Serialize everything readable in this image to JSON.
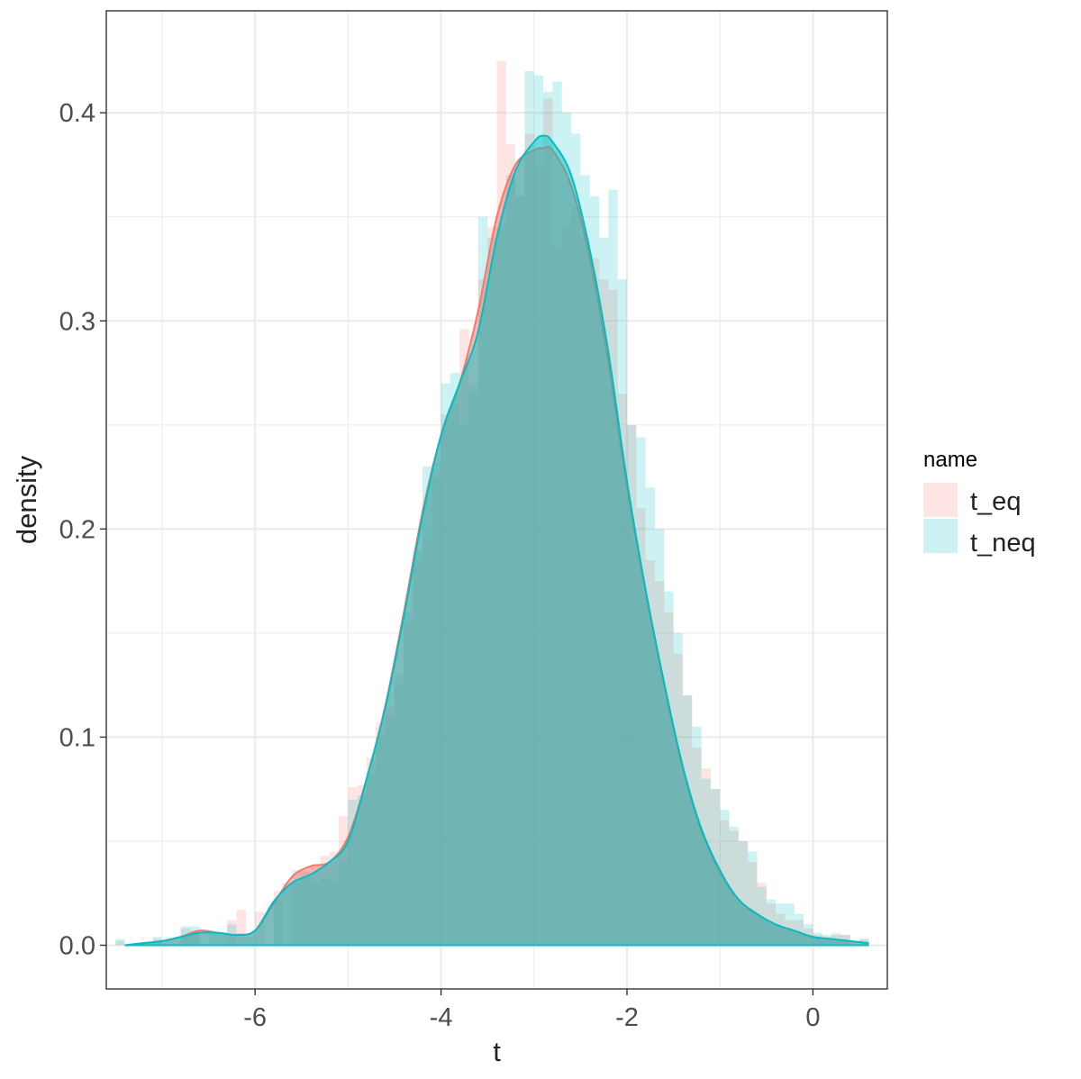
{
  "chart_data": {
    "type": "area",
    "xlabel": "t",
    "ylabel": "density",
    "xlim": [
      -7.6,
      0.8
    ],
    "ylim": [
      -0.021,
      0.449
    ],
    "x_ticks": [
      -6,
      -4,
      -2,
      0
    ],
    "x_tick_labels": [
      "-6",
      "-4",
      "-2",
      "0"
    ],
    "x_minor_ticks": [
      -7,
      -5,
      -3,
      -1
    ],
    "y_ticks": [
      0.0,
      0.1,
      0.2,
      0.3,
      0.4
    ],
    "y_tick_labels": [
      "0.0",
      "0.1",
      "0.2",
      "0.3",
      "0.4"
    ],
    "y_minor_ticks": [
      0.05,
      0.15,
      0.25,
      0.35
    ],
    "grid": true,
    "legend": {
      "title": "name",
      "placement": "right",
      "entries": [
        {
          "label": "t_eq",
          "color": "#F8766D"
        },
        {
          "label": "t_neq",
          "color": "#00BFC4"
        }
      ]
    },
    "histogram_bin_width": 0.1,
    "series": [
      {
        "name": "t_eq",
        "color": "#F8766D",
        "density_x": [
          -7.4,
          -7.2,
          -7.0,
          -6.8,
          -6.6,
          -6.4,
          -6.2,
          -6.0,
          -5.8,
          -5.6,
          -5.4,
          -5.2,
          -5.0,
          -4.8,
          -4.6,
          -4.4,
          -4.2,
          -4.0,
          -3.8,
          -3.6,
          -3.4,
          -3.2,
          -3.0,
          -2.9,
          -2.8,
          -2.6,
          -2.4,
          -2.2,
          -2.0,
          -1.8,
          -1.6,
          -1.4,
          -1.2,
          -1.0,
          -0.8,
          -0.6,
          -0.4,
          -0.2,
          0.0,
          0.2,
          0.4,
          0.6
        ],
        "density_y": [
          0.0,
          0.001,
          0.002,
          0.004,
          0.007,
          0.006,
          0.005,
          0.007,
          0.02,
          0.033,
          0.038,
          0.04,
          0.052,
          0.08,
          0.115,
          0.16,
          0.208,
          0.245,
          0.27,
          0.305,
          0.35,
          0.375,
          0.382,
          0.383,
          0.382,
          0.365,
          0.33,
          0.28,
          0.22,
          0.17,
          0.125,
          0.085,
          0.055,
          0.035,
          0.022,
          0.015,
          0.01,
          0.007,
          0.004,
          0.003,
          0.002,
          0.001
        ],
        "hist_x": [
          -7.45,
          -7.05,
          -6.75,
          -6.65,
          -6.25,
          -6.15,
          -5.95,
          -5.75,
          -5.55,
          -5.45,
          -5.35,
          -5.25,
          -5.15,
          -5.05,
          -4.95,
          -4.85,
          -4.75,
          -4.65,
          -4.55,
          -4.45,
          -4.35,
          -4.25,
          -4.15,
          -4.05,
          -3.95,
          -3.85,
          -3.75,
          -3.65,
          -3.55,
          -3.45,
          -3.35,
          -3.25,
          -3.15,
          -3.05,
          -2.95,
          -2.85,
          -2.75,
          -2.65,
          -2.55,
          -2.45,
          -2.35,
          -2.25,
          -2.15,
          -2.05,
          -1.95,
          -1.85,
          -1.75,
          -1.65,
          -1.55,
          -1.45,
          -1.35,
          -1.25,
          -1.15,
          -1.05,
          -0.95,
          -0.85,
          -0.75,
          -0.65,
          -0.55,
          -0.45,
          -0.35,
          -0.25,
          -0.15,
          -0.05,
          0.05,
          0.15,
          0.25,
          0.35,
          0.55
        ],
        "hist_y": [
          0.002,
          0.003,
          0.008,
          0.007,
          0.012,
          0.017,
          0.016,
          0.026,
          0.03,
          0.035,
          0.038,
          0.043,
          0.045,
          0.062,
          0.076,
          0.077,
          0.09,
          0.107,
          0.115,
          0.125,
          0.155,
          0.185,
          0.195,
          0.225,
          0.255,
          0.26,
          0.296,
          0.27,
          0.32,
          0.345,
          0.425,
          0.385,
          0.36,
          0.39,
          0.375,
          0.407,
          0.335,
          0.345,
          0.355,
          0.34,
          0.33,
          0.32,
          0.315,
          0.265,
          0.25,
          0.21,
          0.185,
          0.175,
          0.16,
          0.14,
          0.12,
          0.095,
          0.085,
          0.075,
          0.06,
          0.055,
          0.05,
          0.04,
          0.03,
          0.02,
          0.015,
          0.012,
          0.012,
          0.008,
          0.005,
          0.004,
          0.006,
          0.005,
          0.003
        ]
      },
      {
        "name": "t_neq",
        "color": "#00BFC4",
        "density_x": [
          -7.4,
          -7.2,
          -7.0,
          -6.8,
          -6.6,
          -6.4,
          -6.2,
          -6.0,
          -5.8,
          -5.6,
          -5.4,
          -5.2,
          -5.0,
          -4.8,
          -4.6,
          -4.4,
          -4.2,
          -4.0,
          -3.8,
          -3.6,
          -3.4,
          -3.2,
          -3.0,
          -2.9,
          -2.8,
          -2.6,
          -2.4,
          -2.2,
          -2.0,
          -1.8,
          -1.6,
          -1.4,
          -1.2,
          -1.0,
          -0.8,
          -0.6,
          -0.4,
          -0.2,
          0.0,
          0.2,
          0.4,
          0.6
        ],
        "density_y": [
          0.0,
          0.001,
          0.002,
          0.004,
          0.006,
          0.006,
          0.005,
          0.007,
          0.021,
          0.03,
          0.034,
          0.04,
          0.05,
          0.08,
          0.114,
          0.158,
          0.206,
          0.245,
          0.27,
          0.295,
          0.34,
          0.372,
          0.386,
          0.389,
          0.386,
          0.37,
          0.334,
          0.285,
          0.223,
          0.171,
          0.126,
          0.086,
          0.056,
          0.036,
          0.022,
          0.015,
          0.01,
          0.007,
          0.004,
          0.003,
          0.002,
          0.001
        ],
        "hist_x": [
          -7.45,
          -7.05,
          -6.75,
          -6.65,
          -6.45,
          -6.35,
          -6.25,
          -6.05,
          -5.75,
          -5.65,
          -5.55,
          -5.45,
          -5.35,
          -5.25,
          -5.15,
          -5.05,
          -4.95,
          -4.85,
          -4.75,
          -4.65,
          -4.55,
          -4.45,
          -4.35,
          -4.25,
          -4.15,
          -4.05,
          -3.95,
          -3.85,
          -3.75,
          -3.65,
          -3.55,
          -3.45,
          -3.35,
          -3.25,
          -3.15,
          -3.05,
          -2.95,
          -2.85,
          -2.75,
          -2.65,
          -2.55,
          -2.45,
          -2.35,
          -2.25,
          -2.15,
          -2.05,
          -1.95,
          -1.85,
          -1.75,
          -1.65,
          -1.55,
          -1.45,
          -1.35,
          -1.25,
          -1.15,
          -1.05,
          -0.95,
          -0.85,
          -0.75,
          -0.65,
          -0.55,
          -0.45,
          -0.35,
          -0.25,
          -0.15,
          -0.05,
          0.05,
          0.15,
          0.25,
          0.35,
          0.55
        ],
        "hist_y": [
          0.003,
          0.004,
          0.009,
          0.009,
          0.006,
          0.006,
          0.01,
          0.004,
          0.022,
          0.03,
          0.036,
          0.036,
          0.03,
          0.032,
          0.03,
          0.04,
          0.07,
          0.072,
          0.083,
          0.1,
          0.11,
          0.13,
          0.16,
          0.19,
          0.23,
          0.232,
          0.27,
          0.275,
          0.25,
          0.265,
          0.35,
          0.34,
          0.345,
          0.37,
          0.36,
          0.42,
          0.418,
          0.41,
          0.415,
          0.4,
          0.39,
          0.37,
          0.36,
          0.34,
          0.363,
          0.32,
          0.25,
          0.244,
          0.22,
          0.2,
          0.17,
          0.15,
          0.12,
          0.105,
          0.08,
          0.075,
          0.065,
          0.057,
          0.05,
          0.045,
          0.028,
          0.022,
          0.02,
          0.02,
          0.015,
          0.01,
          0.006,
          0.005,
          0.005,
          0.005,
          0.003
        ]
      }
    ]
  }
}
